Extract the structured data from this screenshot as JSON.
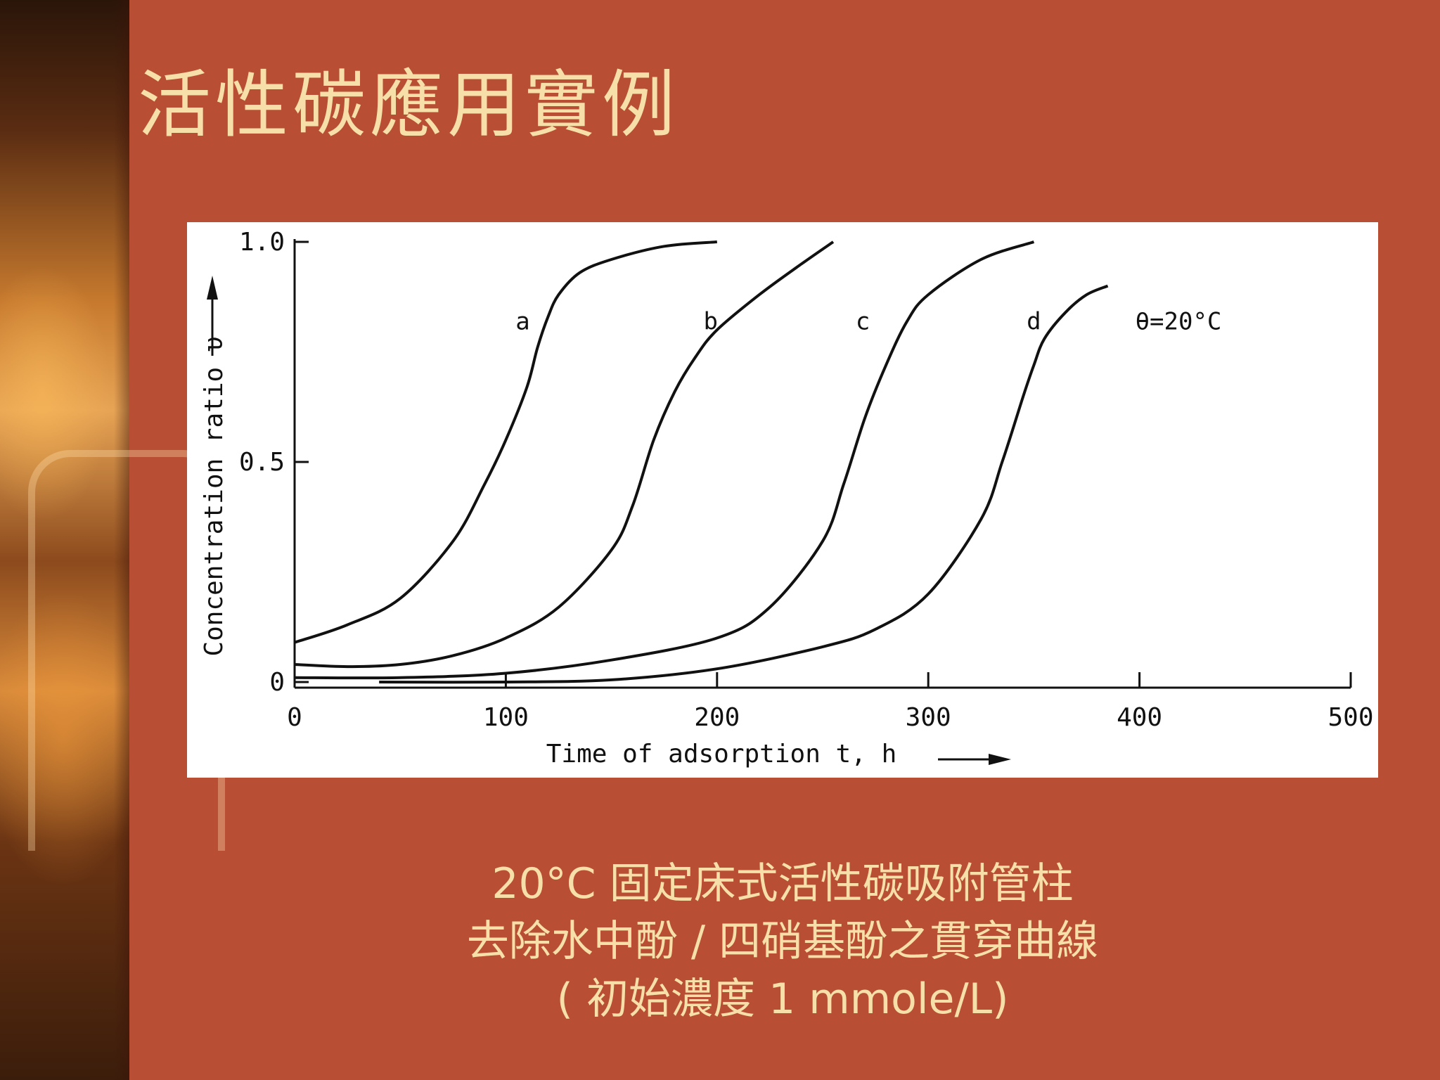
{
  "slide": {
    "title": "活性碳應用實例",
    "caption": [
      "20°C 固定床式活性碳吸附管柱",
      "去除水中酚 / 四硝基酚之貫穿曲線",
      "( 初始濃度  1 mmole/L)"
    ]
  },
  "chart_data": {
    "type": "line",
    "title": "",
    "xlabel": "Time of adsorption  t, h",
    "ylabel": "Concentration ratio  υ",
    "xlim": [
      0,
      500
    ],
    "ylim": [
      0,
      1.0
    ],
    "x_ticks": [
      "0",
      "100",
      "200",
      "300",
      "400",
      "500"
    ],
    "y_ticks": [
      "0",
      "0.5",
      "1.0"
    ],
    "annotation": "θ=20°C",
    "series": [
      {
        "name": "a",
        "x": [
          0,
          25,
          50,
          75,
          90,
          100,
          110,
          115,
          120,
          125,
          135,
          150,
          175,
          200
        ],
        "y": [
          0.09,
          0.13,
          0.19,
          0.32,
          0.45,
          0.55,
          0.67,
          0.76,
          0.83,
          0.88,
          0.93,
          0.96,
          0.99,
          1.0
        ]
      },
      {
        "name": "b",
        "x": [
          0,
          25,
          50,
          75,
          100,
          125,
          150,
          160,
          170,
          180,
          190,
          200,
          220,
          240,
          255
        ],
        "y": [
          0.04,
          0.035,
          0.04,
          0.06,
          0.1,
          0.17,
          0.3,
          0.4,
          0.55,
          0.66,
          0.74,
          0.8,
          0.88,
          0.95,
          1.0
        ]
      },
      {
        "name": "c",
        "x": [
          0,
          50,
          100,
          150,
          200,
          225,
          250,
          260,
          270,
          280,
          290,
          300,
          325,
          350
        ],
        "y": [
          0.01,
          0.01,
          0.02,
          0.05,
          0.1,
          0.17,
          0.32,
          0.45,
          0.6,
          0.72,
          0.82,
          0.88,
          0.96,
          1.0
        ]
      },
      {
        "name": "d",
        "x": [
          40,
          100,
          150,
          200,
          250,
          275,
          300,
          325,
          335,
          345,
          350,
          355,
          365,
          375,
          385
        ],
        "y": [
          0.0,
          0.0,
          0.005,
          0.03,
          0.08,
          0.12,
          0.2,
          0.37,
          0.5,
          0.65,
          0.72,
          0.78,
          0.84,
          0.88,
          0.9
        ]
      }
    ],
    "curve_labels": [
      {
        "text": "a",
        "x": 108,
        "y": 0.82
      },
      {
        "text": "b",
        "x": 197,
        "y": 0.82
      },
      {
        "text": "c",
        "x": 269,
        "y": 0.82
      },
      {
        "text": "d",
        "x": 350,
        "y": 0.82
      }
    ],
    "annotation_pos": {
      "x": 398,
      "y": 0.82
    },
    "grid": false,
    "legend": "none"
  }
}
